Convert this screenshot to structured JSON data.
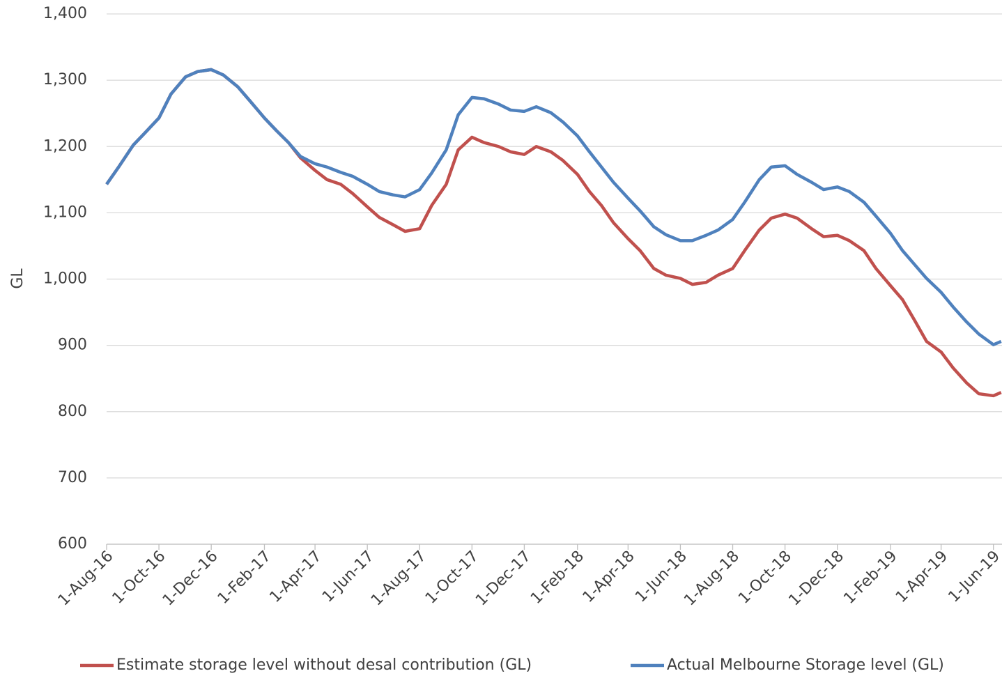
{
  "chart_data": {
    "type": "line",
    "y_label": "GL",
    "x": [
      "2016-08-01",
      "2016-08-15",
      "2016-09-01",
      "2016-09-15",
      "2016-10-01",
      "2016-10-15",
      "2016-11-01",
      "2016-11-15",
      "2016-12-01",
      "2016-12-15",
      "2017-01-01",
      "2017-01-15",
      "2017-02-01",
      "2017-02-15",
      "2017-03-01",
      "2017-03-15",
      "2017-04-01",
      "2017-04-15",
      "2017-05-01",
      "2017-05-15",
      "2017-06-01",
      "2017-06-15",
      "2017-07-01",
      "2017-07-15",
      "2017-08-01",
      "2017-08-15",
      "2017-09-01",
      "2017-09-15",
      "2017-10-01",
      "2017-10-15",
      "2017-11-01",
      "2017-11-15",
      "2017-12-01",
      "2017-12-15",
      "2018-01-01",
      "2018-01-15",
      "2018-02-01",
      "2018-02-15",
      "2018-03-01",
      "2018-03-15",
      "2018-04-01",
      "2018-04-15",
      "2018-05-01",
      "2018-05-15",
      "2018-06-01",
      "2018-06-15",
      "2018-07-01",
      "2018-07-15",
      "2018-08-01",
      "2018-08-15",
      "2018-09-01",
      "2018-09-15",
      "2018-10-01",
      "2018-10-15",
      "2018-11-01",
      "2018-11-15",
      "2018-12-01",
      "2018-12-15",
      "2019-01-01",
      "2019-01-15",
      "2019-02-01",
      "2019-02-15",
      "2019-03-01",
      "2019-03-15",
      "2019-04-01",
      "2019-04-15",
      "2019-05-01",
      "2019-05-15",
      "2019-06-01",
      "2019-06-10"
    ],
    "series": [
      {
        "name": "Estimate storage level without desal contribution (GL)",
        "color": "#c0504d",
        "values": [
          1143,
          1169,
          1202,
          1221,
          1243,
          1279,
          1305,
          1313,
          1316,
          1308,
          1290,
          1269,
          1243,
          1224,
          1206,
          1183,
          1164,
          1150,
          1143,
          1129,
          1109,
          1093,
          1082,
          1072,
          1076,
          1111,
          1143,
          1195,
          1214,
          1206,
          1200,
          1192,
          1188,
          1200,
          1192,
          1179,
          1158,
          1132,
          1111,
          1085,
          1061,
          1043,
          1016,
          1006,
          1001,
          992,
          995,
          1006,
          1016,
          1043,
          1074,
          1092,
          1098,
          1092,
          1076,
          1064,
          1066,
          1058,
          1043,
          1016,
          990,
          969,
          938,
          906,
          890,
          866,
          843,
          827,
          824,
          829
        ]
      },
      {
        "name": "Actual Melbourne Storage level (GL)",
        "color": "#4f81bd",
        "values": [
          1143,
          1169,
          1202,
          1221,
          1243,
          1279,
          1305,
          1313,
          1316,
          1308,
          1290,
          1269,
          1243,
          1224,
          1206,
          1185,
          1174,
          1169,
          1161,
          1155,
          1143,
          1132,
          1127,
          1124,
          1135,
          1160,
          1195,
          1248,
          1274,
          1272,
          1264,
          1255,
          1253,
          1260,
          1251,
          1237,
          1216,
          1192,
          1169,
          1146,
          1122,
          1103,
          1079,
          1067,
          1058,
          1058,
          1066,
          1074,
          1090,
          1116,
          1150,
          1169,
          1171,
          1158,
          1146,
          1135,
          1139,
          1132,
          1116,
          1095,
          1069,
          1043,
          1022,
          1001,
          980,
          958,
          935,
          917,
          901,
          906
        ]
      }
    ],
    "xlim": [
      "2016-08-01",
      "2019-06-11"
    ],
    "xticks": [
      {
        "value": "2016-08-01",
        "label": "1-Aug-16"
      },
      {
        "value": "2016-10-01",
        "label": "1-Oct-16"
      },
      {
        "value": "2016-12-01",
        "label": "1-Dec-16"
      },
      {
        "value": "2017-02-01",
        "label": "1-Feb-17"
      },
      {
        "value": "2017-04-01",
        "label": "1-Apr-17"
      },
      {
        "value": "2017-06-01",
        "label": "1-Jun-17"
      },
      {
        "value": "2017-08-01",
        "label": "1-Aug-17"
      },
      {
        "value": "2017-10-01",
        "label": "1-Oct-17"
      },
      {
        "value": "2017-12-01",
        "label": "1-Dec-17"
      },
      {
        "value": "2018-02-01",
        "label": "1-Feb-18"
      },
      {
        "value": "2018-04-01",
        "label": "1-Apr-18"
      },
      {
        "value": "2018-06-01",
        "label": "1-Jun-18"
      },
      {
        "value": "2018-08-01",
        "label": "1-Aug-18"
      },
      {
        "value": "2018-10-01",
        "label": "1-Oct-18"
      },
      {
        "value": "2018-12-01",
        "label": "1-Dec-18"
      },
      {
        "value": "2019-02-01",
        "label": "1-Feb-19"
      },
      {
        "value": "2019-04-01",
        "label": "1-Apr-19"
      },
      {
        "value": "2019-06-01",
        "label": "1-Jun-19"
      }
    ],
    "ylim": [
      600,
      1400
    ],
    "yticks": [
      600,
      700,
      800,
      900,
      {
        "value": 1000,
        "label": "1,000"
      },
      {
        "value": 1100,
        "label": "1,100"
      },
      {
        "value": 1200,
        "label": "1,200"
      },
      {
        "value": 1300,
        "label": "1,300"
      },
      {
        "value": 1400,
        "label": "1,400"
      }
    ],
    "grid": true,
    "legend": "bottom"
  }
}
